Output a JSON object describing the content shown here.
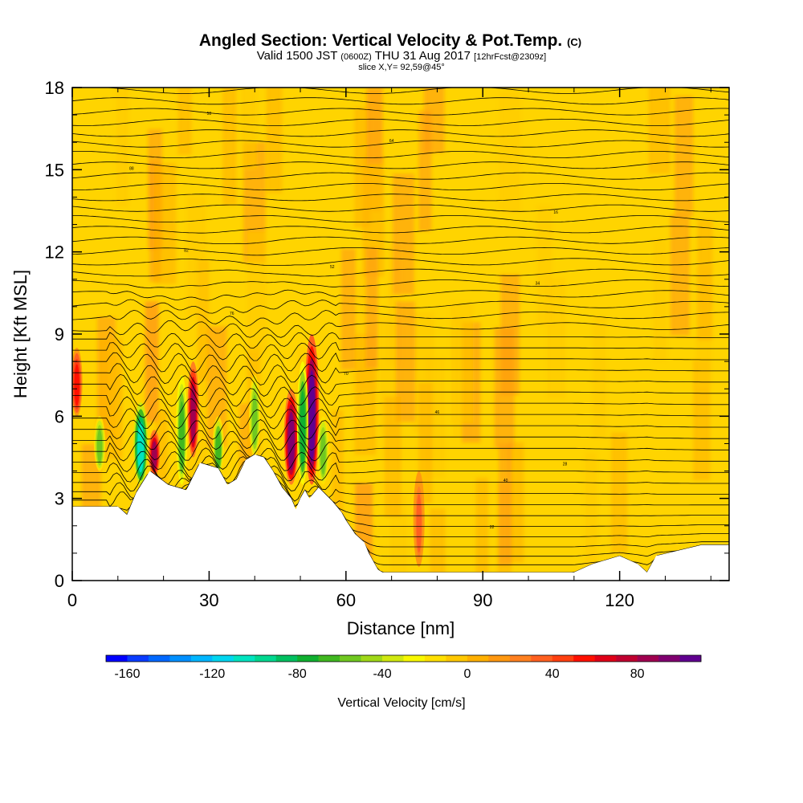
{
  "header": {
    "title": "Angled Section: Vertical Velocity & Pot.Temp.",
    "title_unit": "(C)",
    "valid_prefix": "Valid 1500 JST",
    "valid_utc": "(0600Z)",
    "valid_date": "THU 31 Aug 2017",
    "forecast": "[12hrFcst@2309z]",
    "slice": "slice X,Y= 92,59@45°"
  },
  "chart_data": {
    "type": "heatmap",
    "xlabel": "Distance [nm]",
    "ylabel": "Height [Kft MSL]",
    "xlim": [
      0,
      144
    ],
    "ylim": [
      0,
      18
    ],
    "x_ticks": [
      0,
      30,
      60,
      90,
      120
    ],
    "x_tick_labels": [
      "0",
      "30",
      "60",
      "90",
      "120"
    ],
    "y_ticks": [
      0,
      3,
      6,
      9,
      12,
      15,
      18
    ],
    "y_tick_labels": [
      "0",
      "3",
      "6",
      "9",
      "12",
      "15",
      "18"
    ],
    "background_field": "slightly positive (0 to +20 cm/s) over most of the section",
    "updraft_bands": [
      {
        "x": 1,
        "y_from": 6,
        "y_to": 8.5,
        "w": 55
      },
      {
        "x": 18,
        "y_from": 3.8,
        "y_to": 5.5,
        "w": 80
      },
      {
        "x": 26.5,
        "y_from": 4.5,
        "y_to": 8,
        "w": 85
      },
      {
        "x": 48,
        "y_from": 3.5,
        "y_to": 7,
        "w": 95
      },
      {
        "x": 52.5,
        "y_from": 3.5,
        "y_to": 9,
        "w": 100
      },
      {
        "x": 76,
        "y_from": 0.5,
        "y_to": 4,
        "w": 35
      }
    ],
    "downdraft_bands": [
      {
        "x": 6,
        "y_from": 4,
        "y_to": 6,
        "w": -60
      },
      {
        "x": 15,
        "y_from": 3.5,
        "y_to": 6.5,
        "w": -110
      },
      {
        "x": 24,
        "y_from": 3.5,
        "y_to": 7.5,
        "w": -70
      },
      {
        "x": 32,
        "y_from": 3.8,
        "y_to": 6,
        "w": -65
      },
      {
        "x": 40,
        "y_from": 4.5,
        "y_to": 7.5,
        "w": -60
      },
      {
        "x": 50.5,
        "y_from": 3.5,
        "y_to": 8,
        "w": -80
      },
      {
        "x": 55,
        "y_from": 3.5,
        "y_to": 6,
        "w": -55
      }
    ],
    "terrain_profile": {
      "x": [
        0,
        10,
        12,
        13,
        14,
        17,
        21,
        25,
        28,
        32,
        34,
        36,
        38,
        40,
        42,
        44,
        46,
        48,
        49,
        50,
        51,
        52,
        54,
        57,
        59,
        60,
        62,
        64,
        65,
        66,
        67,
        68,
        70,
        75,
        80,
        90,
        100,
        110,
        114,
        120,
        124,
        126,
        128,
        138,
        144
      ],
      "height": [
        2.7,
        2.7,
        2.4,
        2.8,
        3.2,
        4.0,
        3.5,
        3.3,
        4.3,
        4.1,
        3.5,
        3.7,
        4.4,
        4.6,
        4.5,
        4.0,
        3.4,
        3.0,
        2.6,
        3.0,
        3.3,
        3.0,
        3.4,
        2.9,
        2.5,
        2.2,
        1.7,
        1.4,
        1.0,
        0.7,
        0.4,
        0.3,
        0.3,
        0.3,
        0.3,
        0.3,
        0.3,
        0.3,
        0.6,
        0.9,
        0.6,
        0.3,
        0.9,
        1.3,
        1.3
      ]
    },
    "isentropes": {
      "count": 46,
      "min_height": 0.3,
      "max_height": 17.9,
      "contour_labels": [
        "88",
        "82",
        "76",
        "70",
        "64",
        "58",
        "52",
        "46",
        "40",
        "34",
        "28",
        "22",
        "16"
      ]
    }
  },
  "colorbar": {
    "label": "Vertical Velocity [cm/s]",
    "tick_values": [
      -160,
      -120,
      -80,
      -40,
      0,
      40,
      80
    ],
    "tick_labels": [
      "-160",
      "-120",
      "-80",
      "-40",
      "0",
      "40",
      "80"
    ],
    "range": [
      -170,
      110
    ],
    "colors": [
      "#0000ff",
      "#0a3cff",
      "#0068ff",
      "#0090ff",
      "#00b6ff",
      "#00d6f0",
      "#00e4c0",
      "#00d890",
      "#00c060",
      "#10b030",
      "#40b820",
      "#70c820",
      "#a0d818",
      "#d0e810",
      "#f8f800",
      "#ffe000",
      "#ffc800",
      "#ffb000",
      "#ff9810",
      "#ff8020",
      "#ff6020",
      "#ff4010",
      "#ff1000",
      "#e00018",
      "#c00030",
      "#a00050",
      "#800070",
      "#600090"
    ]
  }
}
